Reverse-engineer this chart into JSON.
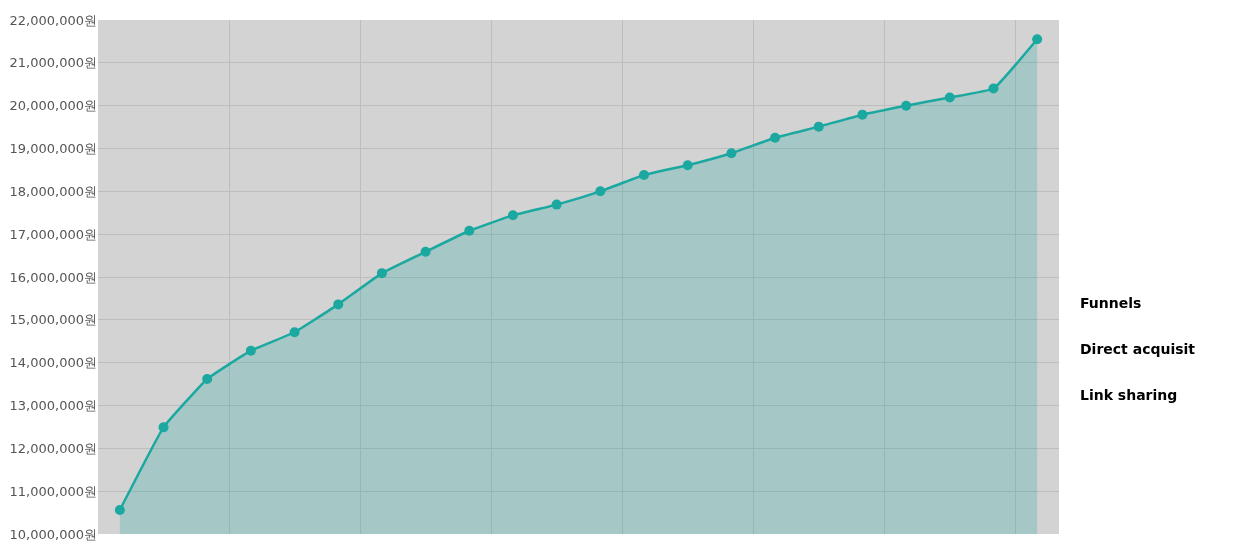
{
  "chart_data": {
    "type": "area",
    "categories": [
      null,
      null,
      null,
      null,
      null,
      null,
      null,
      null,
      null,
      null,
      null,
      null,
      null,
      null,
      null,
      null,
      null,
      null,
      null,
      null,
      null,
      null
    ],
    "series": [
      {
        "color": "#1aa8a0",
        "values": [
          10560000,
          12490000,
          13620000,
          14280000,
          14710000,
          15360000,
          16090000,
          16590000,
          17080000,
          17440000,
          17690000,
          18000000,
          18380000,
          18610000,
          18890000,
          19250000,
          19510000,
          19790000,
          20000000,
          20190000,
          20400000,
          21550000
        ]
      }
    ],
    "ylim": [
      10000000,
      22000000
    ],
    "yticks": [
      {
        "value": 10000000,
        "label": "10,000,000원"
      },
      {
        "value": 11000000,
        "label": "11,000,000원"
      },
      {
        "value": 12000000,
        "label": "12,000,000원"
      },
      {
        "value": 13000000,
        "label": "13,000,000원"
      },
      {
        "value": 14000000,
        "label": "14,000,000원"
      },
      {
        "value": 15000000,
        "label": "15,000,000원"
      },
      {
        "value": 16000000,
        "label": "16,000,000원"
      },
      {
        "value": 17000000,
        "label": "17,000,000원"
      },
      {
        "value": 18000000,
        "label": "18,000,000원"
      },
      {
        "value": 19000000,
        "label": "19,000,000원"
      },
      {
        "value": 20000000,
        "label": "20,000,000원"
      },
      {
        "value": 21000000,
        "label": "21,000,000원"
      },
      {
        "value": 22000000,
        "label": "22,000,000원"
      }
    ],
    "grid": true,
    "marker": "circle",
    "line_style": "solid",
    "annotations": [
      "Funnels",
      "Direct acquisit",
      "Link sharing"
    ]
  }
}
